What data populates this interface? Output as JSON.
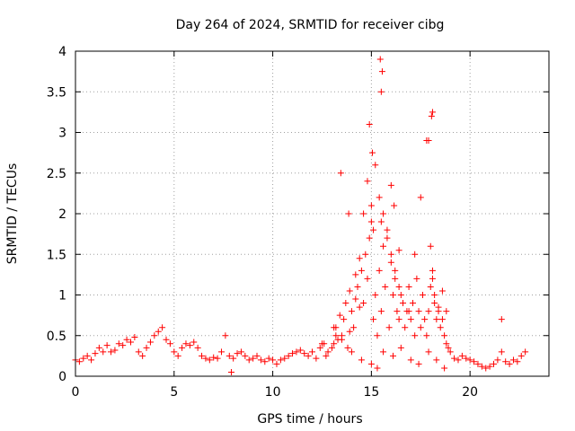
{
  "chart_data": {
    "type": "scatter",
    "title": "Day 264 of 2024, SRMTID for receiver cibg",
    "xlabel": "GPS time / hours",
    "ylabel": "SRMTID / TECUs",
    "xlim": [
      0,
      24
    ],
    "ylim": [
      0,
      4
    ],
    "xticks": [
      0,
      5,
      10,
      15,
      20
    ],
    "yticks": [
      0,
      0.5,
      1,
      1.5,
      2,
      2.5,
      3,
      3.5,
      4
    ],
    "xtick_labels": [
      "0",
      "5",
      "10",
      "15",
      "20"
    ],
    "ytick_labels": [
      "0",
      "0.5",
      "1",
      "1.5",
      "2",
      "2.5",
      "3",
      "3.5",
      "4"
    ],
    "grid": true,
    "marker": "+",
    "series": [
      {
        "name": "SRMTID",
        "color": "#ff0000",
        "x": [
          0.0,
          0.2,
          0.4,
          0.6,
          0.8,
          1.0,
          1.2,
          1.4,
          1.6,
          1.8,
          2.0,
          2.2,
          2.4,
          2.6,
          2.8,
          3.0,
          3.2,
          3.4,
          3.6,
          3.8,
          4.0,
          4.2,
          4.4,
          4.6,
          4.8,
          5.0,
          5.2,
          5.4,
          5.6,
          5.8,
          6.0,
          6.2,
          6.4,
          6.6,
          6.8,
          7.0,
          7.2,
          7.4,
          7.6,
          7.8,
          8.0,
          8.2,
          8.4,
          8.6,
          8.8,
          9.0,
          9.2,
          9.4,
          9.6,
          9.8,
          10.0,
          10.2,
          10.4,
          10.6,
          10.8,
          11.0,
          11.2,
          11.4,
          11.6,
          11.8,
          12.0,
          12.2,
          12.4,
          12.6,
          12.8,
          13.0,
          13.1,
          13.3,
          13.5,
          13.6,
          13.8,
          13.9,
          14.0,
          14.1,
          14.2,
          14.3,
          14.4,
          14.5,
          14.6,
          14.7,
          14.8,
          14.9,
          15.0,
          15.1,
          15.2,
          15.3,
          15.4,
          15.5,
          15.6,
          15.7,
          15.8,
          15.9,
          16.0,
          16.1,
          16.2,
          16.3,
          16.4,
          16.5,
          16.6,
          16.7,
          16.8,
          16.9,
          17.0,
          17.1,
          17.2,
          17.3,
          17.4,
          17.5,
          17.6,
          17.7,
          17.8,
          17.9,
          18.0,
          18.1,
          18.2,
          18.3,
          18.4,
          18.5,
          18.6,
          18.7,
          18.8,
          18.9,
          19.0,
          19.2,
          19.4,
          19.6,
          19.8,
          20.0,
          20.2,
          20.4,
          20.6,
          20.8,
          21.0,
          21.2,
          21.4,
          21.6,
          21.8,
          22.0,
          22.2,
          22.4,
          22.6,
          22.8,
          13.1,
          13.2,
          13.4,
          13.7,
          13.9,
          14.2,
          14.4,
          14.6,
          14.8,
          15.0,
          15.1,
          15.2,
          15.4,
          15.5,
          15.6,
          15.8,
          16.0,
          16.2,
          16.4,
          16.6,
          16.9,
          17.2,
          17.5,
          17.8,
          18.0,
          18.1,
          18.2,
          18.4,
          18.6,
          18.8,
          12.5,
          12.7,
          13.2,
          13.5,
          14.0,
          14.5,
          15.0,
          15.3,
          15.6,
          16.1,
          16.5,
          17.0,
          17.4,
          17.9,
          18.3,
          18.7,
          15.45,
          15.5,
          15.55,
          14.9,
          15.05,
          18.05,
          18.1,
          17.9,
          16.15,
          13.45,
          21.6,
          7.9,
          13.85,
          16.0,
          16.4
        ],
        "y": [
          0.2,
          0.18,
          0.22,
          0.25,
          0.2,
          0.28,
          0.35,
          0.3,
          0.38,
          0.3,
          0.32,
          0.4,
          0.38,
          0.45,
          0.42,
          0.48,
          0.3,
          0.25,
          0.35,
          0.42,
          0.5,
          0.55,
          0.6,
          0.45,
          0.4,
          0.3,
          0.25,
          0.35,
          0.4,
          0.38,
          0.42,
          0.35,
          0.25,
          0.22,
          0.2,
          0.23,
          0.22,
          0.3,
          0.5,
          0.25,
          0.22,
          0.28,
          0.3,
          0.25,
          0.2,
          0.22,
          0.25,
          0.2,
          0.18,
          0.22,
          0.2,
          0.15,
          0.2,
          0.22,
          0.25,
          0.28,
          0.3,
          0.32,
          0.28,
          0.25,
          0.3,
          0.22,
          0.35,
          0.4,
          0.3,
          0.35,
          0.6,
          0.45,
          0.5,
          0.7,
          0.35,
          0.55,
          0.8,
          0.6,
          0.95,
          1.1,
          0.85,
          1.3,
          0.9,
          1.5,
          1.2,
          1.7,
          1.9,
          0.7,
          1.0,
          0.5,
          1.3,
          0.8,
          1.6,
          1.1,
          1.8,
          0.6,
          1.4,
          1.0,
          1.2,
          0.8,
          0.7,
          1.0,
          0.9,
          0.6,
          0.8,
          1.1,
          0.7,
          0.9,
          0.5,
          1.2,
          0.8,
          0.6,
          1.0,
          0.7,
          0.5,
          0.8,
          1.1,
          1.3,
          0.9,
          0.7,
          0.85,
          0.6,
          0.7,
          0.5,
          0.4,
          0.35,
          0.3,
          0.22,
          0.2,
          0.25,
          0.22,
          0.2,
          0.18,
          0.15,
          0.12,
          0.1,
          0.12,
          0.15,
          0.2,
          0.3,
          0.18,
          0.15,
          0.2,
          0.18,
          0.25,
          0.3,
          0.4,
          0.6,
          0.75,
          0.9,
          1.05,
          1.25,
          1.45,
          2.0,
          2.4,
          2.1,
          1.8,
          2.6,
          2.2,
          1.9,
          2.0,
          1.7,
          1.5,
          1.3,
          1.1,
          0.9,
          0.8,
          1.5,
          2.2,
          2.9,
          1.6,
          1.2,
          1.0,
          0.8,
          1.05,
          0.8,
          0.4,
          0.25,
          0.5,
          0.45,
          0.3,
          0.2,
          0.15,
          0.1,
          0.3,
          0.25,
          0.35,
          0.2,
          0.15,
          0.3,
          0.2,
          0.1,
          3.9,
          3.5,
          3.75,
          3.1,
          2.75,
          3.2,
          3.25,
          2.9,
          2.1,
          2.5,
          0.7,
          0.05,
          2.0,
          2.35,
          1.55
        ]
      }
    ]
  }
}
